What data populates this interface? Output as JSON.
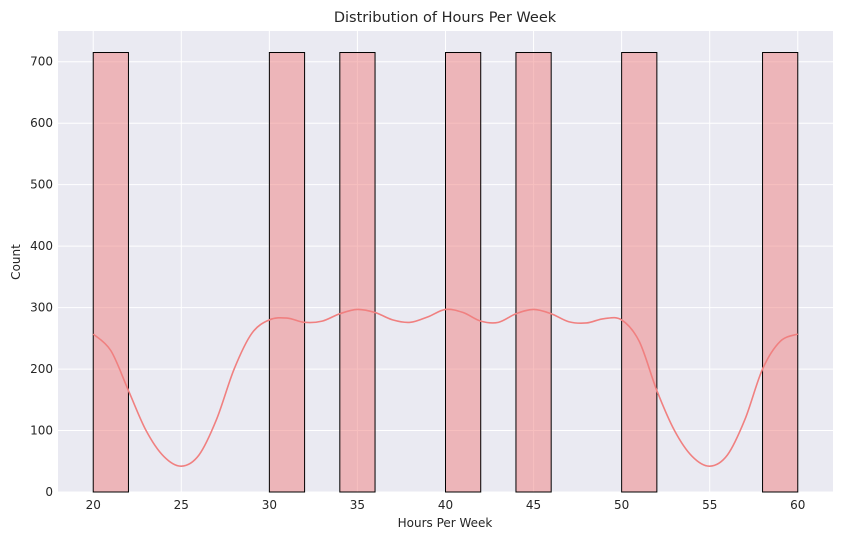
{
  "chart_data": {
    "type": "bar",
    "title": "Distribution of Hours Per Week",
    "xlabel": "Hours Per Week",
    "ylabel": "Count",
    "xlim": [
      18,
      62
    ],
    "ylim": [
      0,
      750
    ],
    "xticks": [
      20,
      25,
      30,
      35,
      40,
      45,
      50,
      55,
      60
    ],
    "yticks": [
      0,
      100,
      200,
      300,
      400,
      500,
      600,
      700
    ],
    "grid": true,
    "bin_width": 2,
    "bars": [
      {
        "x0": 20,
        "x1": 22,
        "count": 715
      },
      {
        "x0": 30,
        "x1": 32,
        "count": 715
      },
      {
        "x0": 34,
        "x1": 36,
        "count": 715
      },
      {
        "x0": 40,
        "x1": 42,
        "count": 715
      },
      {
        "x0": 44,
        "x1": 46,
        "count": 715
      },
      {
        "x0": 50,
        "x1": 52,
        "count": 715
      },
      {
        "x0": 58,
        "x1": 60,
        "count": 715
      }
    ],
    "kde": {
      "x": [
        20,
        21,
        22,
        23,
        24,
        25,
        26,
        27,
        28,
        29,
        30,
        31,
        32,
        33,
        34,
        35,
        36,
        37,
        38,
        39,
        40,
        41,
        42,
        43,
        44,
        45,
        46,
        47,
        48,
        49,
        50,
        51,
        52,
        53,
        54,
        55,
        56,
        57,
        58,
        59,
        60
      ],
      "y": [
        257,
        230,
        165,
        100,
        58,
        42,
        60,
        118,
        200,
        258,
        280,
        283,
        276,
        278,
        290,
        297,
        292,
        280,
        276,
        285,
        297,
        292,
        278,
        276,
        290,
        297,
        290,
        277,
        275,
        282,
        280,
        245,
        165,
        100,
        58,
        42,
        60,
        118,
        200,
        245,
        257
      ]
    },
    "colors": {
      "bar_fill": "#f08080",
      "bar_edge": "#000000",
      "kde_line": "#f08080",
      "plot_bg": "#eaeaf2",
      "grid": "#ffffff"
    }
  }
}
